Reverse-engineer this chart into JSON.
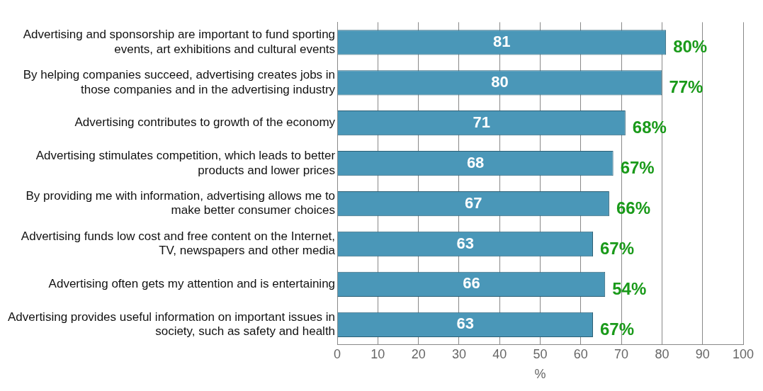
{
  "chart_data": {
    "type": "bar",
    "orientation": "horizontal",
    "xlabel": "%",
    "categories": [
      "Advertising and sponsorship are important to fund sporting events, art exhibitions and cultural events",
      "By helping companies succeed, advertising creates jobs in those companies and in the advertising industry",
      "Advertising contributes to growth of the economy",
      "Advertising stimulates competition, which leads to better products and lower prices",
      "By providing me with information, advertising allows me to make better consumer choices",
      "Advertising funds low cost and free content on the Internet, TV, newspapers and other media",
      "Advertising often gets my attention and is entertaining",
      "Advertising provides useful information on important issues in society, such as safety and health"
    ],
    "values": [
      81,
      80,
      71,
      68,
      67,
      63,
      66,
      63
    ],
    "color": "#4a97b8",
    "xlim": [
      0,
      100
    ],
    "xticks": [
      0,
      10,
      20,
      30,
      40,
      50,
      60,
      70,
      80,
      90,
      100
    ],
    "grid": "x",
    "data_labels": true,
    "annotations": [
      {
        "text": "80%",
        "x": 81,
        "y": "Advertising and sponsorship are important to fund sporting events, art exhibitions and cultural events"
      },
      {
        "text": "77%",
        "x": 80,
        "y": "By helping companies succeed, advertising creates jobs in those companies and in the advertising industry"
      },
      {
        "text": "68%",
        "x": 71,
        "y": "Advertising contributes to growth of the economy"
      },
      {
        "text": "67%",
        "x": 68,
        "y": "Advertising stimulates competition, which leads to better products and lower prices"
      },
      {
        "text": "66%",
        "x": 67,
        "y": "By providing me with information, advertising allows me to make better consumer choices"
      },
      {
        "text": "67%",
        "x": 63,
        "y": "Advertising funds low cost and free content on the Internet, TV, newspapers and other media"
      },
      {
        "text": "54%",
        "x": 66,
        "y": "Advertising often gets my attention and is entertaining"
      },
      {
        "text": "67%",
        "x": 63,
        "y": "Advertising provides useful information on important issues in society, such as safety and health"
      }
    ]
  }
}
